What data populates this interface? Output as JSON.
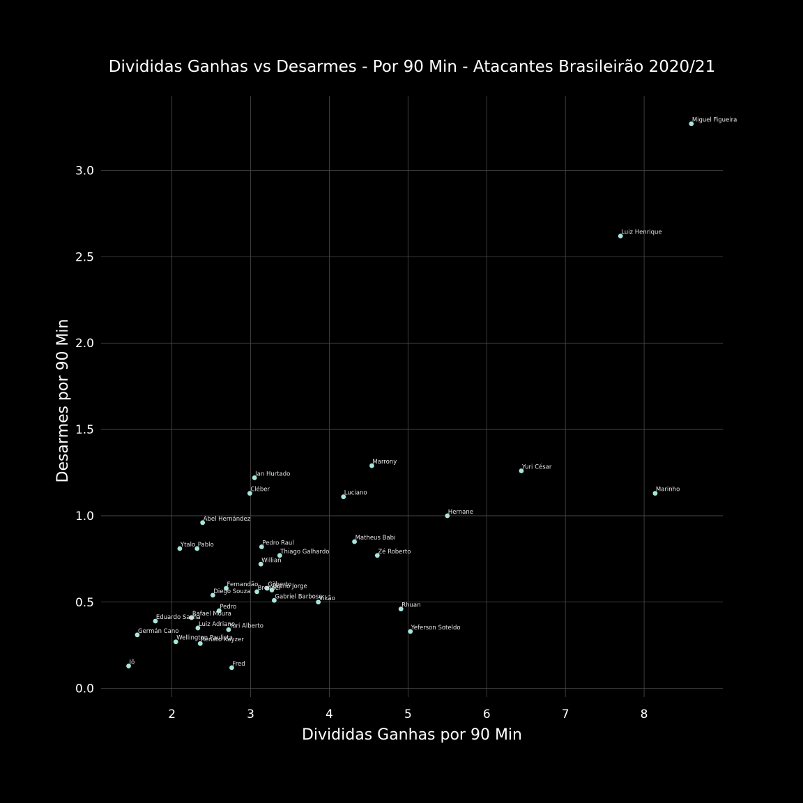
{
  "chart_data": {
    "type": "scatter",
    "title": "Divididas Ganhas vs Desarmes - Por 90 Min - Atacantes Brasileirão 2020/21",
    "xlabel": "Divididas Ganhas por 90 Min",
    "ylabel": "Desarmes por 90 Min",
    "xlim": [
      1.1,
      9.0
    ],
    "ylim": [
      -0.05,
      3.43
    ],
    "xticks": [
      2,
      3,
      4,
      5,
      6,
      7,
      8
    ],
    "yticks": [
      0.0,
      0.5,
      1.0,
      1.5,
      2.0,
      2.5,
      3.0
    ],
    "xtick_labels": [
      "2",
      "3",
      "4",
      "5",
      "6",
      "7",
      "8"
    ],
    "ytick_labels": [
      "0.0",
      "0.5",
      "1.0",
      "1.5",
      "2.0",
      "2.5",
      "3.0"
    ],
    "grid": true,
    "background": "#000000",
    "point_color": "#a8e6dc",
    "points": [
      {
        "label": "Miguel Figueira",
        "x": 8.6,
        "y": 3.27
      },
      {
        "label": "Luiz Henrique",
        "x": 7.7,
        "y": 2.62
      },
      {
        "label": "Marrony",
        "x": 4.54,
        "y": 1.29
      },
      {
        "label": "Yuri César",
        "x": 6.44,
        "y": 1.26
      },
      {
        "label": "Marinho",
        "x": 8.14,
        "y": 1.13
      },
      {
        "label": "Ian Hurtado",
        "x": 3.05,
        "y": 1.22
      },
      {
        "label": "Cléber",
        "x": 2.99,
        "y": 1.13
      },
      {
        "label": "Luciano",
        "x": 4.18,
        "y": 1.11
      },
      {
        "label": "Hernane",
        "x": 5.5,
        "y": 1.0
      },
      {
        "label": "Abel Hernández",
        "x": 2.39,
        "y": 0.96
      },
      {
        "label": "Matheus Babi",
        "x": 4.32,
        "y": 0.85
      },
      {
        "label": "Pedro Raul",
        "x": 3.14,
        "y": 0.82
      },
      {
        "label": "Ytalo",
        "x": 2.1,
        "y": 0.81
      },
      {
        "label": "Pablo",
        "x": 2.32,
        "y": 0.81
      },
      {
        "label": "Thiago Galhardo",
        "x": 3.37,
        "y": 0.77
      },
      {
        "label": "Zé Roberto",
        "x": 4.61,
        "y": 0.77
      },
      {
        "label": "Willian",
        "x": 3.13,
        "y": 0.72
      },
      {
        "label": "Fernandão",
        "x": 2.69,
        "y": 0.58
      },
      {
        "label": "Gilberto",
        "x": 3.21,
        "y": 0.58
      },
      {
        "label": "Bruno Jorge",
        "x": 3.27,
        "y": 0.57
      },
      {
        "label": "Brenner",
        "x": 3.08,
        "y": 0.56
      },
      {
        "label": "Diego Souza",
        "x": 2.52,
        "y": 0.54
      },
      {
        "label": "Gabriel Barbosa",
        "x": 3.3,
        "y": 0.51
      },
      {
        "label": "Vikão",
        "x": 3.86,
        "y": 0.5
      },
      {
        "label": "Rhuan",
        "x": 4.91,
        "y": 0.46
      },
      {
        "label": "Pedro",
        "x": 2.6,
        "y": 0.45
      },
      {
        "label": "Rafael Moura",
        "x": 2.25,
        "y": 0.41
      },
      {
        "label": "Eduardo Sasha",
        "x": 1.79,
        "y": 0.39
      },
      {
        "label": "Luiz Adriano",
        "x": 2.33,
        "y": 0.35
      },
      {
        "label": "Yuri Alberto",
        "x": 2.72,
        "y": 0.34
      },
      {
        "label": "Yeferson Soteldo",
        "x": 5.03,
        "y": 0.33
      },
      {
        "label": "Germán Cano",
        "x": 1.56,
        "y": 0.31
      },
      {
        "label": "Wellington Paulista",
        "x": 2.05,
        "y": 0.27
      },
      {
        "label": "Renato Kayzer",
        "x": 2.36,
        "y": 0.26
      },
      {
        "label": "Fred",
        "x": 2.76,
        "y": 0.12
      },
      {
        "label": "Jô",
        "x": 1.45,
        "y": 0.13
      }
    ]
  }
}
